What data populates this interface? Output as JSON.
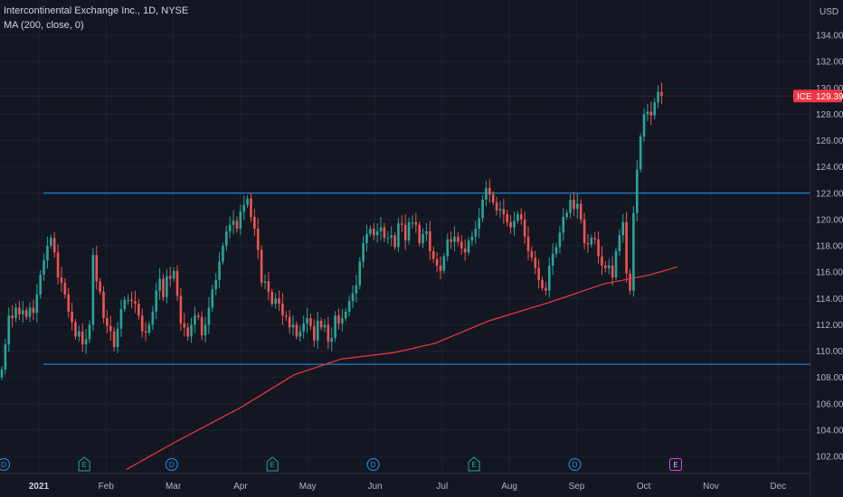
{
  "header": {
    "title": "Intercontinental Exchange Inc., 1D, NYSE",
    "indicator": "MA (200, close, 0)"
  },
  "colors": {
    "background": "#131722",
    "up": "#26a69a",
    "down": "#ef5350",
    "ma": "#f23645",
    "hline": "#2196f3",
    "axis_text": "#b2b5be",
    "price_tag": "#f23645"
  },
  "price_tag": {
    "symbol": "ICE",
    "value": "129.39"
  },
  "events": [
    {
      "letter": "D",
      "type": "dividend",
      "month_pos": 0.0
    },
    {
      "letter": "E",
      "type": "earnings",
      "month_pos": 1.2
    },
    {
      "letter": "D",
      "type": "dividend",
      "month_pos": 2.5
    },
    {
      "letter": "E",
      "type": "earnings",
      "month_pos": 4.0
    },
    {
      "letter": "D",
      "type": "dividend",
      "month_pos": 5.5
    },
    {
      "letter": "E",
      "type": "earnings",
      "month_pos": 7.0
    },
    {
      "letter": "D",
      "type": "dividend",
      "month_pos": 8.5
    },
    {
      "letter": "E",
      "type": "earnings-upcoming",
      "month_pos": 10.0
    }
  ],
  "chart_data": {
    "type": "candlestick",
    "title": "Intercontinental Exchange Inc., 1D, NYSE",
    "y_axis_unit": "USD",
    "ylim": [
      101,
      135
    ],
    "y_ticks": [
      "102.00",
      "104.00",
      "106.00",
      "108.00",
      "110.00",
      "112.00",
      "114.00",
      "116.00",
      "118.00",
      "120.00",
      "122.00",
      "124.00",
      "126.00",
      "128.00",
      "130.00",
      "132.00",
      "134.00"
    ],
    "x_labels": [
      "2021",
      "Feb",
      "Mar",
      "Apr",
      "May",
      "Jun",
      "Jul",
      "Aug",
      "Sep",
      "Oct",
      "Nov",
      "Dec"
    ],
    "horizontal_levels": [
      122.0,
      109.0
    ],
    "ma_label": "MA (200, close, 0)",
    "ma_points": [
      {
        "m": 1.3,
        "v": 101.0
      },
      {
        "m": 2.0,
        "v": 103.0
      },
      {
        "m": 3.0,
        "v": 105.7
      },
      {
        "m": 3.8,
        "v": 108.2
      },
      {
        "m": 4.5,
        "v": 109.4
      },
      {
        "m": 5.3,
        "v": 109.9
      },
      {
        "m": 5.9,
        "v": 110.6
      },
      {
        "m": 6.7,
        "v": 112.3
      },
      {
        "m": 7.6,
        "v": 113.7
      },
      {
        "m": 8.4,
        "v": 115.1
      },
      {
        "m": 9.1,
        "v": 115.8
      },
      {
        "m": 9.5,
        "v": 116.4
      }
    ],
    "closes": [
      108.6,
      110.5,
      112.7,
      112.5,
      113.3,
      112.8,
      113.1,
      112.6,
      113.3,
      112.9,
      114.3,
      115.8,
      116.9,
      118.0,
      118.6,
      117.5,
      115.6,
      115.2,
      114.3,
      113.0,
      112.2,
      111.1,
      111.5,
      110.5,
      110.9,
      112.0,
      117.3,
      115.3,
      114.5,
      112.5,
      111.9,
      111.5,
      110.3,
      111.7,
      113.2,
      113.9,
      113.9,
      113.8,
      113.6,
      112.7,
      111.5,
      111.4,
      112.0,
      113.0,
      114.6,
      115.5,
      114.1,
      115.7,
      115.5,
      116.1,
      114.2,
      112.1,
      111.8,
      111.1,
      112.0,
      112.7,
      112.6,
      111.2,
      112.0,
      113.3,
      114.7,
      115.4,
      116.8,
      118.0,
      119.1,
      119.6,
      119.9,
      119.3,
      120.6,
      121.1,
      121.6,
      120.2,
      119.3,
      117.7,
      115.2,
      115.3,
      114.5,
      113.6,
      114.0,
      113.6,
      112.7,
      112.6,
      111.8,
      112.0,
      111.1,
      111.5,
      112.1,
      112.5,
      111.9,
      110.8,
      112.3,
      111.8,
      112.0,
      110.7,
      111.0,
      112.7,
      112.1,
      112.5,
      113.0,
      113.8,
      114.4,
      115.0,
      116.8,
      118.2,
      118.9,
      119.3,
      118.8,
      119.1,
      119.4,
      118.6,
      118.6,
      118.8,
      117.9,
      119.7,
      119.6,
      118.4,
      119.8,
      119.8,
      119.6,
      118.2,
      118.9,
      119.1,
      117.6,
      117.0,
      116.5,
      116.1,
      117.2,
      118.5,
      118.3,
      118.7,
      118.3,
      117.8,
      117.5,
      118.4,
      118.7,
      119.3,
      120.1,
      121.5,
      122.4,
      121.9,
      121.3,
      120.7,
      120.8,
      120.4,
      119.8,
      119.4,
      119.9,
      120.4,
      120.0,
      118.7,
      117.6,
      117.1,
      116.3,
      115.4,
      114.8,
      114.6,
      116.5,
      117.4,
      117.9,
      119.0,
      120.2,
      120.5,
      121.5,
      120.8,
      121.2,
      120.0,
      118.2,
      118.1,
      118.6,
      118.5,
      117.2,
      116.5,
      116.3,
      116.5,
      115.6,
      117.6,
      118.8,
      119.8,
      115.9,
      114.6,
      120.5,
      123.8,
      126.3,
      128.0,
      128.2,
      127.9,
      128.9,
      129.7,
      129.4
    ]
  }
}
